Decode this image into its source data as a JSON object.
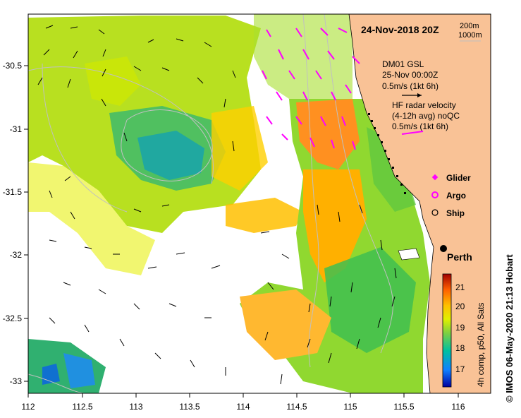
{
  "map": {
    "title": "24-Nov-2018 20Z",
    "x_ticks": [
      "112",
      "112.5",
      "113",
      "113.5",
      "114",
      "114.5",
      "115",
      "115.5",
      "116"
    ],
    "y_ticks": [
      "-30.5",
      "-31",
      "-31.5",
      "-32",
      "-32.5",
      "-33"
    ],
    "lon_range": [
      112.0,
      116.3
    ],
    "lat_range": [
      -33.15,
      -30.1
    ],
    "depth_legend": [
      "200m",
      "1000m"
    ],
    "mooring": {
      "name": "DM01 GSL",
      "time": "25-Nov 00:00Z",
      "scale": "0.5m/s (1kt 6h)"
    },
    "hf_radar": {
      "line1": "HF radar velocity",
      "line2": "(4-12h avg) noQC",
      "scale": "0.5m/s (1kt 6h)"
    },
    "legend": [
      {
        "label": "Glider",
        "symbol": "magenta-diamond"
      },
      {
        "label": "Argo",
        "symbol": "magenta-circle"
      },
      {
        "label": "Ship",
        "symbol": "black-circle"
      }
    ],
    "city": {
      "label": "Perth",
      "lon": 115.86,
      "lat": -31.95
    },
    "colorbar": {
      "ticks": [
        "17",
        "18",
        "19",
        "20",
        "21"
      ],
      "range": [
        16.5,
        21.5
      ],
      "caption": "4h comp, p50, All Sats"
    },
    "credit": "© IMOS 06-May-2020 21:13 Hobart",
    "colors": {
      "land": "#f9c296",
      "hf_arrows": "#ff00ff",
      "arrows": "#000000",
      "contours": "#c0c0c0"
    }
  }
}
